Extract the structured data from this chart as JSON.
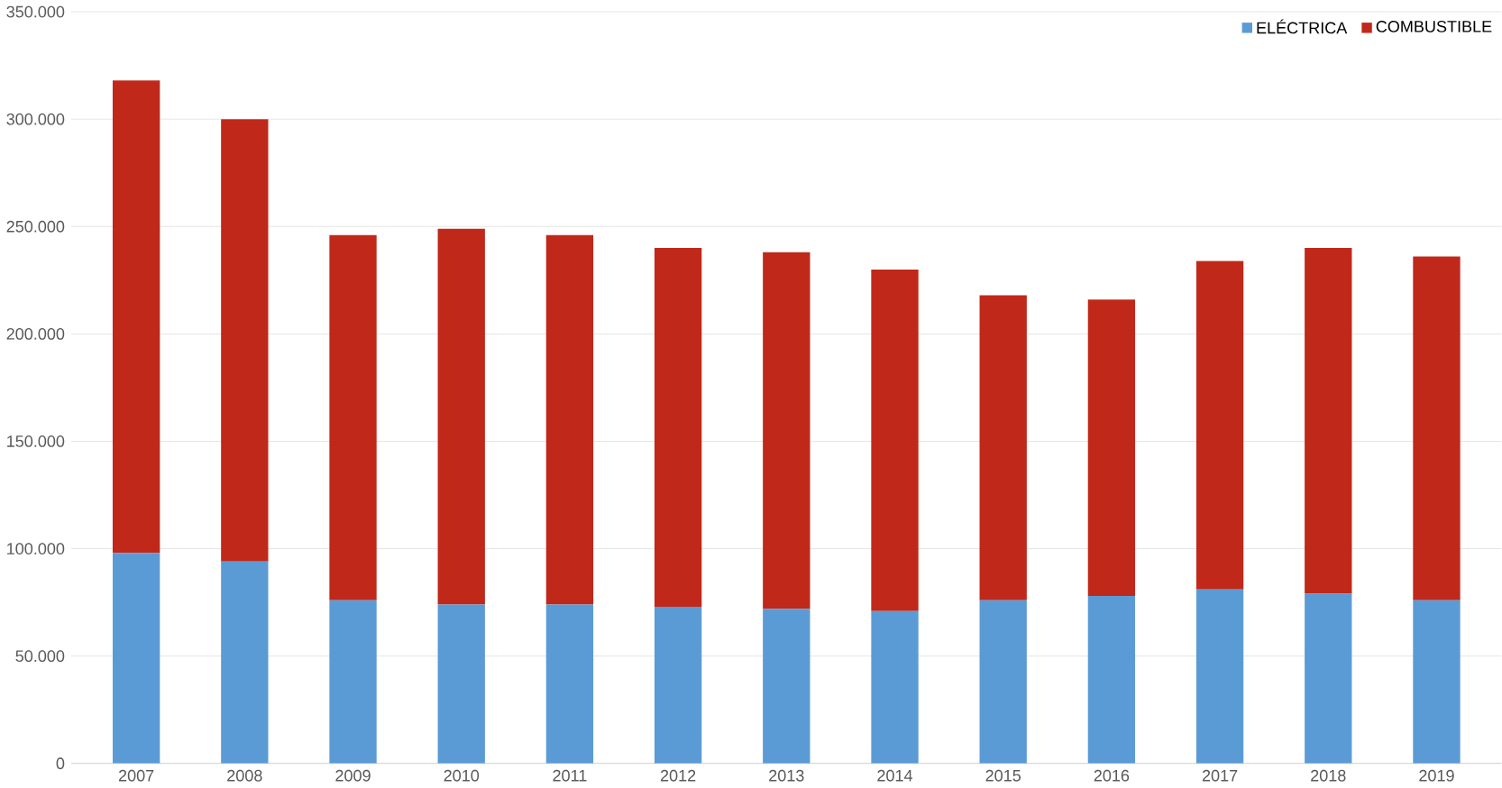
{
  "chart_data": {
    "type": "bar",
    "stacked": true,
    "categories": [
      "2007",
      "2008",
      "2009",
      "2010",
      "2011",
      "2012",
      "2013",
      "2014",
      "2015",
      "2016",
      "2017",
      "2018",
      "2019"
    ],
    "series": [
      {
        "name": "ELÉCTRICA",
        "color": "#5b9bd5",
        "values": [
          98000,
          94000,
          76000,
          74000,
          74000,
          73000,
          72000,
          71000,
          76000,
          78000,
          81000,
          79000,
          76000
        ]
      },
      {
        "name": "COMBUSTIBLE",
        "color": "#c0281a",
        "values": [
          220000,
          206000,
          170000,
          175000,
          172000,
          167000,
          166000,
          159000,
          142000,
          138000,
          153000,
          161000,
          160000
        ]
      }
    ],
    "ylim": [
      0,
      350000
    ],
    "yticks": [
      0,
      {
        "value": 50000,
        "label": "50.000"
      },
      {
        "value": 100000,
        "label": "100.000"
      },
      {
        "value": 150000,
        "label": "150.000"
      },
      {
        "value": 200000,
        "label": "200.000"
      },
      {
        "value": 250000,
        "label": "250.000"
      },
      {
        "value": 300000,
        "label": "300.000"
      },
      {
        "value": 350000,
        "label": "350.000"
      }
    ],
    "grid": "y",
    "legend": "top right"
  }
}
